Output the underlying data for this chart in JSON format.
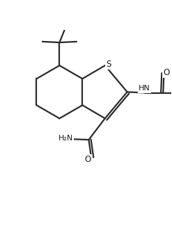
{
  "bg_color": "#ffffff",
  "line_color": "#2a2a2a",
  "line_width": 1.6,
  "text_color": "#1a1a1a",
  "figsize": [
    2.47,
    3.31
  ],
  "dpi": 100,
  "xlim": [
    0.0,
    1.0
  ],
  "ylim": [
    0.0,
    1.0
  ]
}
